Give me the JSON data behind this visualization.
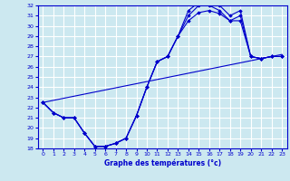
{
  "title": "Graphe des températures (°c)",
  "bg_color": "#cce8f0",
  "grid_color": "#ffffff",
  "line_color": "#0000cc",
  "xlim": [
    -0.5,
    23.5
  ],
  "ylim": [
    18,
    32
  ],
  "xticks": [
    0,
    1,
    2,
    3,
    4,
    5,
    6,
    7,
    8,
    9,
    10,
    11,
    12,
    13,
    14,
    15,
    16,
    17,
    18,
    19,
    20,
    21,
    22,
    23
  ],
  "yticks": [
    18,
    19,
    20,
    21,
    22,
    23,
    24,
    25,
    26,
    27,
    28,
    29,
    30,
    31,
    32
  ],
  "curve1": {
    "x": [
      0,
      1,
      2,
      3,
      4,
      5,
      6,
      7,
      8,
      9,
      10,
      11,
      12,
      13,
      14,
      15,
      16,
      17,
      18,
      19,
      20,
      21,
      22,
      23
    ],
    "y": [
      22.5,
      21.5,
      21.0,
      21.0,
      19.5,
      18.2,
      18.2,
      18.5,
      19.0,
      21.2,
      24.0,
      26.5,
      27.0,
      29.0,
      31.5,
      32.3,
      32.3,
      32.0,
      31.0,
      31.5,
      27.0,
      26.8,
      27.0,
      27.0
    ]
  },
  "curve2": {
    "x": [
      0,
      1,
      2,
      3,
      4,
      5,
      6,
      7,
      8,
      9,
      10,
      11,
      12,
      13,
      14,
      15,
      16,
      17,
      18,
      19,
      20,
      21,
      22,
      23
    ],
    "y": [
      22.5,
      21.5,
      21.0,
      21.0,
      19.5,
      18.2,
      18.2,
      18.5,
      19.0,
      21.2,
      24.0,
      26.5,
      27.0,
      29.0,
      31.0,
      32.0,
      32.0,
      31.5,
      30.5,
      31.0,
      27.0,
      26.8,
      27.0,
      27.0
    ]
  },
  "curve3": {
    "x": [
      0,
      1,
      2,
      3,
      4,
      5,
      6,
      7,
      8,
      9,
      10,
      11,
      12,
      13,
      14,
      15,
      16,
      17,
      18,
      19,
      20,
      21,
      22,
      23
    ],
    "y": [
      22.5,
      21.5,
      21.0,
      21.0,
      19.5,
      18.2,
      18.2,
      18.5,
      19.0,
      21.2,
      24.0,
      26.5,
      27.0,
      29.0,
      30.5,
      31.3,
      31.5,
      31.2,
      30.5,
      30.5,
      27.0,
      26.8,
      27.0,
      27.0
    ]
  },
  "regression_line": {
    "x": [
      0,
      23
    ],
    "y": [
      22.5,
      27.2
    ]
  }
}
